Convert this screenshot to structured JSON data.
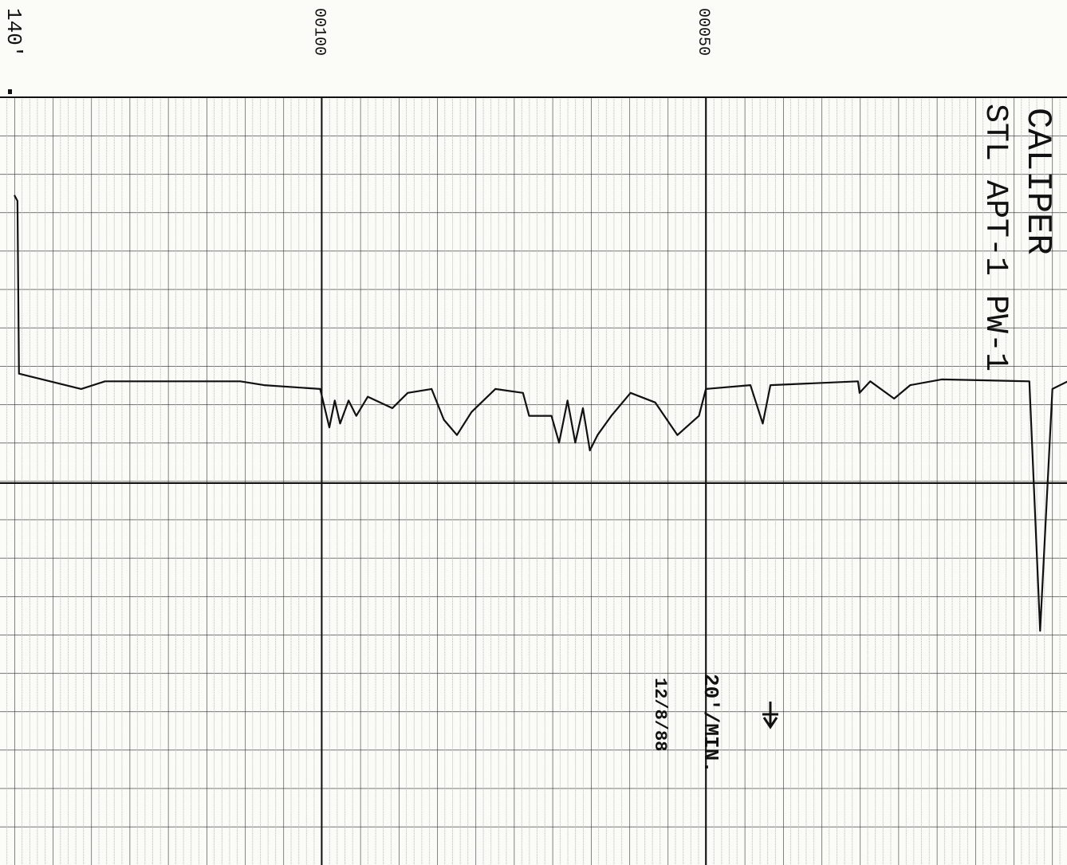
{
  "chart_data": {
    "type": "line",
    "title": "CALIPER",
    "subtitle": "STL APT-1 PW-1",
    "annotations": [
      "20'/MIN.",
      "12/8/88"
    ],
    "x": [
      140,
      139.6,
      139.4,
      131.3,
      128.2,
      110.6,
      107.5,
      100.2,
      99.0,
      98.3,
      97.6,
      96.5,
      95.5,
      94.0,
      90.8,
      88.8,
      85.7,
      84.1,
      82.4,
      80.5,
      77.4,
      73.8,
      73.0,
      70.1,
      69.1,
      68.0,
      67.0,
      66.0,
      65.1,
      64.1,
      62.3,
      59.8,
      56.6,
      53.7,
      50.9,
      50.0,
      44.2,
      42.6,
      41.6,
      30.2,
      30.0,
      28.6,
      25.5,
      23.4,
      19.3,
      7.9,
      6.5,
      4.9,
      2.9
    ],
    "values": [
      2.55,
      2.7,
      7.2,
      7.6,
      7.4,
      7.4,
      7.5,
      7.6,
      8.6,
      7.9,
      8.5,
      7.9,
      8.3,
      7.8,
      8.1,
      7.7,
      7.6,
      8.4,
      8.8,
      8.2,
      7.6,
      7.7,
      8.3,
      8.3,
      9.0,
      7.9,
      9.0,
      8.1,
      9.2,
      8.8,
      8.3,
      7.7,
      7.95,
      8.8,
      8.3,
      7.6,
      7.5,
      8.5,
      7.5,
      7.4,
      7.7,
      7.4,
      7.85,
      7.5,
      7.35,
      7.4,
      13.9,
      7.6,
      7.4
    ],
    "color": "#111111",
    "xlim": [
      140,
      3
    ],
    "xticks": [
      {
        "value": 140,
        "label": "140'"
      },
      {
        "value": 100,
        "label": "00100"
      },
      {
        "value": 50,
        "label": "00050"
      }
    ],
    "ylim": [
      20,
      0
    ],
    "grid": true
  }
}
